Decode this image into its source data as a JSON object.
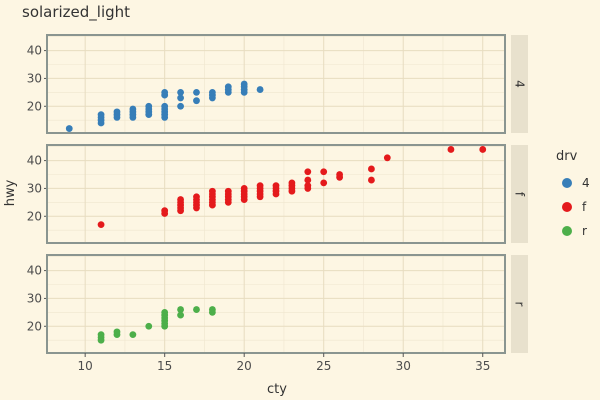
{
  "chart_data": {
    "type": "scatter",
    "title": "solarized_light",
    "xlabel": "cty",
    "ylabel": "hwy",
    "xlim": [
      7.6,
      36.4
    ],
    "ylim": [
      10.4,
      45.6
    ],
    "x_ticks": [
      10,
      15,
      20,
      25,
      30,
      35
    ],
    "y_ticks": [
      20,
      30,
      40
    ],
    "grid": true,
    "legend": {
      "title": "drv",
      "position": "right"
    },
    "facets": [
      {
        "label": "4",
        "color": "#377eb8",
        "points": [
          [
            9,
            12
          ],
          [
            11,
            14
          ],
          [
            11,
            15
          ],
          [
            11,
            16
          ],
          [
            11,
            17
          ],
          [
            12,
            16
          ],
          [
            12,
            17
          ],
          [
            12,
            18
          ],
          [
            13,
            16
          ],
          [
            13,
            17
          ],
          [
            13,
            18
          ],
          [
            13,
            19
          ],
          [
            14,
            17
          ],
          [
            14,
            18
          ],
          [
            14,
            19
          ],
          [
            14,
            20
          ],
          [
            15,
            16
          ],
          [
            15,
            17
          ],
          [
            15,
            18
          ],
          [
            15,
            19
          ],
          [
            15,
            20
          ],
          [
            15,
            24
          ],
          [
            15,
            25
          ],
          [
            16,
            20
          ],
          [
            16,
            23
          ],
          [
            16,
            25
          ],
          [
            17,
            22
          ],
          [
            17,
            25
          ],
          [
            18,
            23
          ],
          [
            18,
            24
          ],
          [
            18,
            25
          ],
          [
            19,
            25
          ],
          [
            19,
            26
          ],
          [
            19,
            27
          ],
          [
            20,
            25
          ],
          [
            20,
            26
          ],
          [
            20,
            27
          ],
          [
            20,
            28
          ],
          [
            21,
            26
          ]
        ]
      },
      {
        "label": "f",
        "color": "#e41a1c",
        "points": [
          [
            11,
            17
          ],
          [
            15,
            21
          ],
          [
            15,
            22
          ],
          [
            16,
            22
          ],
          [
            16,
            23
          ],
          [
            16,
            24
          ],
          [
            16,
            25
          ],
          [
            16,
            26
          ],
          [
            17,
            23
          ],
          [
            17,
            24
          ],
          [
            17,
            25
          ],
          [
            17,
            26
          ],
          [
            17,
            27
          ],
          [
            18,
            24
          ],
          [
            18,
            25
          ],
          [
            18,
            26
          ],
          [
            18,
            27
          ],
          [
            18,
            28
          ],
          [
            18,
            29
          ],
          [
            19,
            25
          ],
          [
            19,
            26
          ],
          [
            19,
            27
          ],
          [
            19,
            28
          ],
          [
            19,
            29
          ],
          [
            20,
            26
          ],
          [
            20,
            27
          ],
          [
            20,
            28
          ],
          [
            20,
            29
          ],
          [
            20,
            30
          ],
          [
            21,
            27
          ],
          [
            21,
            28
          ],
          [
            21,
            29
          ],
          [
            21,
            30
          ],
          [
            21,
            31
          ],
          [
            22,
            28
          ],
          [
            22,
            29
          ],
          [
            22,
            30
          ],
          [
            22,
            31
          ],
          [
            23,
            29
          ],
          [
            23,
            30
          ],
          [
            23,
            31
          ],
          [
            23,
            32
          ],
          [
            24,
            30
          ],
          [
            24,
            31
          ],
          [
            24,
            33
          ],
          [
            24,
            36
          ],
          [
            25,
            32
          ],
          [
            25,
            36
          ],
          [
            26,
            34
          ],
          [
            26,
            35
          ],
          [
            28,
            33
          ],
          [
            28,
            37
          ],
          [
            29,
            41
          ],
          [
            33,
            44
          ],
          [
            35,
            44
          ]
        ]
      },
      {
        "label": "r",
        "color": "#4daf4a",
        "points": [
          [
            11,
            15
          ],
          [
            11,
            16
          ],
          [
            11,
            17
          ],
          [
            12,
            17
          ],
          [
            12,
            18
          ],
          [
            13,
            17
          ],
          [
            14,
            20
          ],
          [
            15,
            20
          ],
          [
            15,
            21
          ],
          [
            15,
            22
          ],
          [
            15,
            23
          ],
          [
            15,
            24
          ],
          [
            15,
            25
          ],
          [
            16,
            24
          ],
          [
            16,
            26
          ],
          [
            17,
            26
          ],
          [
            18,
            25
          ],
          [
            18,
            26
          ]
        ]
      }
    ]
  }
}
